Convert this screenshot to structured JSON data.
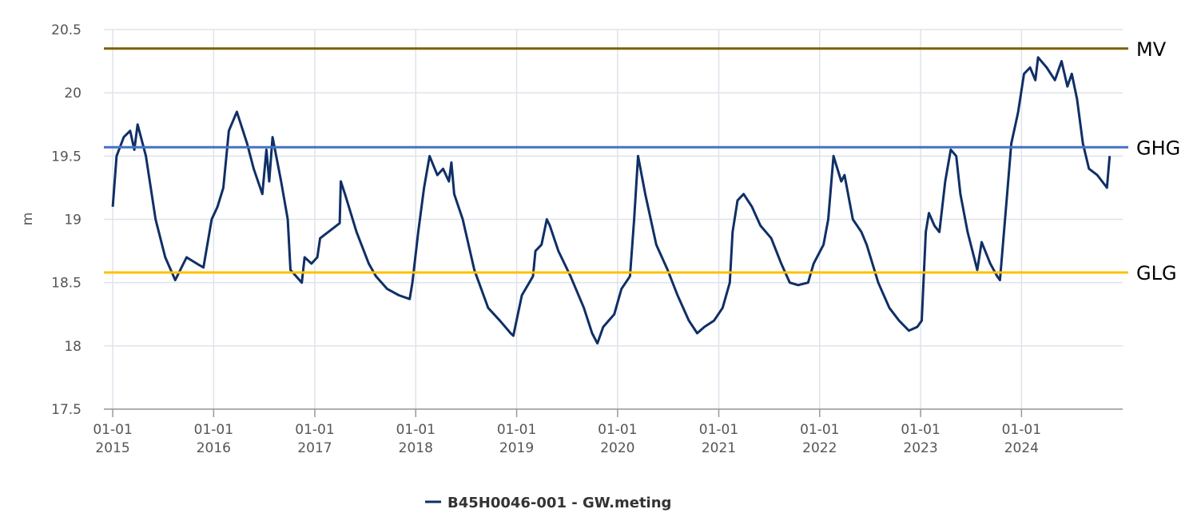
{
  "chart_data": {
    "type": "line",
    "y_label": "m",
    "ylim": [
      17.5,
      20.5
    ],
    "yticks": [
      17.5,
      18,
      18.5,
      19,
      19.5,
      20,
      20.5
    ],
    "xlim": [
      "2014-11-30",
      "2025-01-01"
    ],
    "xticks": [
      {
        "value": "2015-01-01",
        "label": "01-01\n2015"
      },
      {
        "value": "2016-01-01",
        "label": "01-01\n2016"
      },
      {
        "value": "2017-01-01",
        "label": "01-01\n2017"
      },
      {
        "value": "2018-01-01",
        "label": "01-01\n2018"
      },
      {
        "value": "2019-01-01",
        "label": "01-01\n2019"
      },
      {
        "value": "2020-01-01",
        "label": "01-01\n2020"
      },
      {
        "value": "2021-01-01",
        "label": "01-01\n2021"
      },
      {
        "value": "2022-01-01",
        "label": "01-01\n2022"
      },
      {
        "value": "2023-01-01",
        "label": "01-01\n2023"
      },
      {
        "value": "2024-01-01",
        "label": "01-01\n2024"
      }
    ],
    "grid": true,
    "reference_lines": [
      {
        "name": "MV",
        "value": 20.35,
        "color": "#7f6000"
      },
      {
        "name": "GHG",
        "value": 19.57,
        "color": "#4472c4"
      },
      {
        "name": "GLG",
        "value": 18.58,
        "color": "#ffc000"
      }
    ],
    "series": [
      {
        "name": "B45H0046-001 - GW.meting",
        "color": "#0f2f66",
        "x": [
          "2015-01-01",
          "2015-01-15",
          "2015-02-10",
          "2015-03-05",
          "2015-03-20",
          "2015-04-01",
          "2015-05-01",
          "2015-06-05",
          "2015-07-10",
          "2015-08-15",
          "2015-09-25",
          "2015-11-01",
          "2015-11-25",
          "2015-12-25",
          "2016-01-15",
          "2016-02-05",
          "2016-02-25",
          "2016-03-25",
          "2016-05-01",
          "2016-05-25",
          "2016-06-25",
          "2016-07-10",
          "2016-07-20",
          "2016-08-01",
          "2016-09-01",
          "2016-09-25",
          "2016-10-05",
          "2016-11-15",
          "2016-11-25",
          "2016-12-20",
          "2017-01-10",
          "2017-01-20",
          "2017-04-01",
          "2017-04-05",
          "2017-04-20",
          "2017-06-01",
          "2017-07-15",
          "2017-08-10",
          "2017-09-20",
          "2017-11-01",
          "2017-12-10",
          "2017-12-20",
          "2018-01-10",
          "2018-01-31",
          "2018-02-20",
          "2018-03-20",
          "2018-04-10",
          "2018-05-01",
          "2018-05-10",
          "2018-05-20",
          "2018-06-20",
          "2018-08-01",
          "2018-09-20",
          "2018-11-01",
          "2018-12-10",
          "2018-12-20",
          "2019-01-20",
          "2019-03-01",
          "2019-03-10",
          "2019-04-01",
          "2019-04-20",
          "2019-05-01",
          "2019-06-01",
          "2019-07-15",
          "2019-09-01",
          "2019-10-01",
          "2019-10-20",
          "2019-11-10",
          "2019-12-20",
          "2020-01-15",
          "2020-02-15",
          "2020-03-01",
          "2020-03-15",
          "2020-04-10",
          "2020-05-20",
          "2020-06-30",
          "2020-08-05",
          "2020-09-15",
          "2020-10-15",
          "2020-11-10",
          "2020-12-15",
          "2021-01-15",
          "2021-02-10",
          "2021-02-20",
          "2021-03-10",
          "2021-04-01",
          "2021-05-01",
          "2021-06-01",
          "2021-07-10",
          "2021-08-15",
          "2021-09-15",
          "2021-10-15",
          "2021-11-20",
          "2021-12-10",
          "2022-01-15",
          "2022-02-01",
          "2022-02-20",
          "2022-03-20",
          "2022-04-01",
          "2022-05-01",
          "2022-06-01",
          "2022-06-20",
          "2022-08-01",
          "2022-09-10",
          "2022-10-15",
          "2022-11-20",
          "2022-12-20",
          "2023-01-05",
          "2023-01-20",
          "2023-01-31",
          "2023-02-20",
          "2023-03-10",
          "2023-03-31",
          "2023-04-20",
          "2023-05-10",
          "2023-05-25",
          "2023-06-20",
          "2023-07-25",
          "2023-08-10",
          "2023-09-10",
          "2023-10-05",
          "2023-10-15",
          "2023-11-10",
          "2023-11-25",
          "2023-12-10",
          "2023-12-20",
          "2024-01-10",
          "2024-02-01",
          "2024-02-20",
          "2024-03-01",
          "2024-04-01",
          "2024-05-01",
          "2024-05-25",
          "2024-06-15",
          "2024-07-01",
          "2024-07-20",
          "2024-08-10",
          "2024-09-01",
          "2024-10-01",
          "2024-11-05",
          "2024-11-15"
        ],
        "values": [
          19.1,
          19.5,
          19.65,
          19.7,
          19.55,
          19.75,
          19.5,
          19.0,
          18.7,
          18.52,
          18.7,
          18.65,
          18.62,
          19.0,
          19.1,
          19.25,
          19.7,
          19.85,
          19.6,
          19.4,
          19.2,
          19.55,
          19.3,
          19.65,
          19.3,
          19.0,
          18.6,
          18.5,
          18.7,
          18.65,
          18.7,
          18.85,
          18.97,
          19.3,
          19.2,
          18.9,
          18.65,
          18.55,
          18.45,
          18.4,
          18.37,
          18.5,
          18.9,
          19.25,
          19.5,
          19.35,
          19.4,
          19.3,
          19.45,
          19.2,
          19.0,
          18.6,
          18.3,
          18.2,
          18.1,
          18.08,
          18.4,
          18.55,
          18.75,
          18.8,
          19.0,
          18.95,
          18.75,
          18.55,
          18.3,
          18.1,
          18.02,
          18.15,
          18.25,
          18.45,
          18.55,
          19.0,
          19.5,
          19.2,
          18.8,
          18.6,
          18.4,
          18.2,
          18.1,
          18.15,
          18.2,
          18.3,
          18.5,
          18.9,
          19.15,
          19.2,
          19.1,
          18.95,
          18.85,
          18.65,
          18.5,
          18.48,
          18.5,
          18.65,
          18.8,
          19.0,
          19.5,
          19.3,
          19.35,
          19.0,
          18.9,
          18.8,
          18.5,
          18.3,
          18.2,
          18.12,
          18.15,
          18.2,
          18.9,
          19.05,
          18.95,
          18.9,
          19.3,
          19.55,
          19.5,
          19.2,
          18.9,
          18.6,
          18.82,
          18.65,
          18.55,
          18.52,
          19.2,
          19.6,
          19.75,
          19.85,
          20.15,
          20.2,
          20.1,
          20.28,
          20.2,
          20.1,
          20.25,
          20.05,
          20.15,
          19.95,
          19.6,
          19.4,
          19.35,
          19.25,
          19.5
        ]
      }
    ]
  }
}
